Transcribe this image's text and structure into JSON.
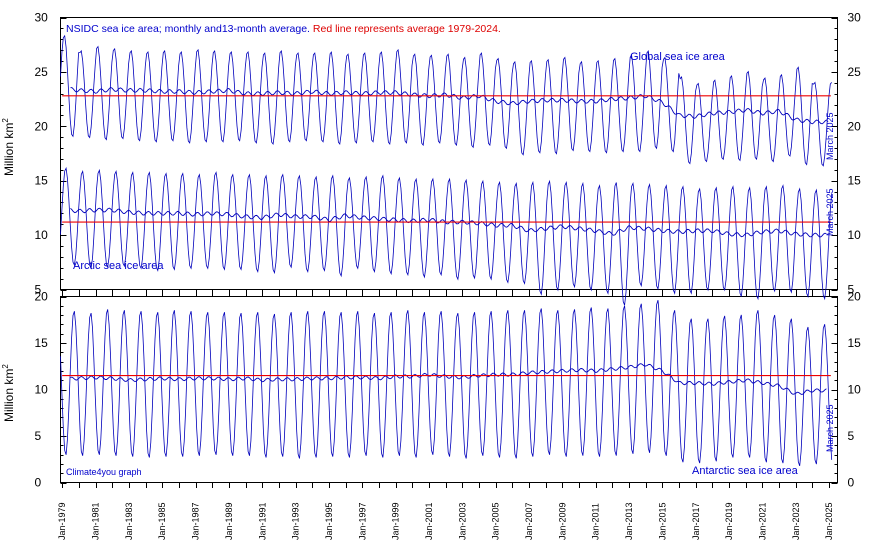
{
  "chart_data": [
    {
      "type": "line",
      "panel": "top",
      "title_parts": [
        {
          "text": "NSIDC sea ice area; monthly and13-month average. ",
          "color": "#0000cc"
        },
        {
          "text": "Red line represents average 1979-2024.",
          "color": "#dd0000"
        }
      ],
      "ylabel": "Million km",
      "ylabel_sup": "2",
      "ylim": [
        5,
        30
      ],
      "yticks": [
        5,
        10,
        15,
        20,
        25,
        30
      ],
      "x_range": [
        1978.9,
        2025.5
      ],
      "series": [
        {
          "name": "Global sea ice area",
          "label": "Global sea ice area",
          "end_label": "March 2025",
          "color": "#0000bb",
          "average_1979_2024": 22.8,
          "annual_max": [
            28.4,
            27.0,
            27.4,
            27.2,
            27.0,
            26.9,
            27.0,
            26.9,
            27.1,
            27.0,
            26.9,
            26.9,
            26.8,
            27.0,
            26.8,
            26.8,
            26.9,
            26.7,
            26.8,
            26.9,
            27.1,
            26.7,
            26.6,
            26.7,
            26.4,
            26.8,
            26.3,
            26.0,
            26.1,
            26.2,
            26.4,
            26.0,
            26.1,
            26.3,
            26.6,
            27.0,
            26.4,
            24.6,
            24.0,
            24.3,
            24.7,
            25.1,
            24.5,
            24.8,
            25.5,
            24.1
          ],
          "annual_min": [
            19.0,
            18.9,
            18.7,
            18.8,
            18.6,
            18.5,
            18.6,
            18.4,
            18.5,
            18.5,
            18.6,
            18.4,
            18.3,
            18.5,
            18.6,
            18.5,
            18.3,
            18.4,
            18.5,
            18.3,
            18.4,
            18.2,
            18.4,
            18.2,
            18.0,
            18.2,
            17.9,
            17.3,
            17.5,
            17.4,
            17.7,
            17.6,
            17.5,
            17.6,
            17.6,
            17.9,
            17.6,
            16.5,
            16.7,
            16.9,
            16.8,
            16.9,
            16.7,
            17.2,
            16.4,
            16.3
          ],
          "avg13": [
            23.5,
            23.3,
            23.2,
            23.4,
            23.3,
            23.3,
            23.2,
            23.2,
            23.1,
            23.2,
            23.3,
            23.0,
            23.0,
            23.1,
            23.0,
            23.2,
            23.0,
            23.1,
            23.0,
            23.1,
            23.1,
            22.9,
            22.8,
            22.9,
            22.6,
            22.8,
            22.3,
            22.1,
            22.3,
            22.4,
            22.4,
            22.3,
            22.3,
            22.5,
            22.6,
            22.8,
            22.2,
            21.0,
            20.9,
            21.2,
            21.3,
            21.5,
            21.2,
            21.4,
            20.6,
            20.4
          ]
        },
        {
          "name": "Arctic sea ice area",
          "label": "Arctic sea ice area",
          "end_label": "March 2025",
          "color": "#0000bb",
          "average_1979_2024": 11.2,
          "annual_max": [
            16.2,
            15.9,
            16.0,
            15.9,
            15.8,
            15.8,
            15.7,
            15.7,
            15.6,
            15.8,
            15.6,
            15.6,
            15.5,
            15.6,
            15.5,
            15.4,
            15.5,
            15.3,
            15.4,
            15.5,
            15.3,
            15.2,
            15.2,
            15.2,
            15.1,
            15.0,
            14.9,
            14.8,
            14.9,
            15.0,
            14.9,
            14.8,
            14.6,
            14.9,
            14.8,
            14.7,
            14.6,
            14.5,
            14.3,
            14.4,
            14.5,
            14.4,
            14.5,
            14.6,
            14.3,
            14.2
          ],
          "annual_min": [
            7.2,
            6.9,
            7.0,
            7.1,
            6.9,
            6.7,
            6.8,
            6.9,
            6.9,
            6.8,
            6.8,
            6.6,
            6.5,
            7.0,
            6.6,
            6.7,
            6.2,
            6.9,
            6.6,
            6.4,
            6.3,
            6.1,
            6.3,
            5.9,
            6.0,
            5.9,
            5.6,
            5.5,
            4.5,
            4.9,
            5.2,
            4.9,
            4.6,
            3.5,
            5.3,
            5.0,
            4.6,
            4.6,
            4.9,
            4.9,
            4.3,
            4.1,
            4.8,
            4.7,
            4.3,
            4.1
          ],
          "avg13": [
            12.4,
            12.2,
            12.3,
            12.3,
            12.1,
            12.0,
            12.0,
            12.0,
            11.9,
            12.0,
            11.9,
            11.7,
            11.6,
            11.9,
            11.7,
            11.7,
            11.4,
            11.8,
            11.6,
            11.5,
            11.4,
            11.3,
            11.4,
            11.2,
            11.2,
            11.1,
            10.9,
            10.9,
            10.4,
            10.6,
            10.8,
            10.6,
            10.4,
            10.1,
            10.7,
            10.6,
            10.4,
            10.3,
            10.4,
            10.4,
            10.1,
            10.0,
            10.3,
            10.4,
            10.1,
            10.0
          ]
        }
      ]
    },
    {
      "type": "line",
      "panel": "bottom",
      "ylabel": "Million km",
      "ylabel_sup": "2",
      "ylim": [
        0,
        20
      ],
      "yticks": [
        0,
        5,
        10,
        15,
        20
      ],
      "x_range": [
        1978.9,
        2025.5
      ],
      "credit": "Climate4you graph",
      "series": [
        {
          "name": "Antarctic sea ice area",
          "label": "Antarctic sea ice area",
          "end_label": "March 2025",
          "color": "#0000bb",
          "average_1979_2024": 11.5,
          "annual_max": [
            18.5,
            18.3,
            18.7,
            18.6,
            18.5,
            18.4,
            18.6,
            18.5,
            18.4,
            18.4,
            18.3,
            18.4,
            18.2,
            18.4,
            18.5,
            18.5,
            18.4,
            18.5,
            18.3,
            18.4,
            18.6,
            18.4,
            18.5,
            18.3,
            18.4,
            18.5,
            18.6,
            18.6,
            18.8,
            18.6,
            18.7,
            18.9,
            18.8,
            19.1,
            19.3,
            19.7,
            18.6,
            17.7,
            17.7,
            18.0,
            18.1,
            18.6,
            18.1,
            17.7,
            16.8,
            17.1
          ],
          "annual_min": [
            2.9,
            2.8,
            2.9,
            2.8,
            2.7,
            2.6,
            2.7,
            2.7,
            2.8,
            2.9,
            2.8,
            2.8,
            2.6,
            2.7,
            2.5,
            2.6,
            2.7,
            2.6,
            2.8,
            2.6,
            2.8,
            2.6,
            2.9,
            2.7,
            2.5,
            2.8,
            2.6,
            2.5,
            2.7,
            2.9,
            2.7,
            2.8,
            2.7,
            2.8,
            3.0,
            3.1,
            2.8,
            2.1,
            2.0,
            2.2,
            2.6,
            2.6,
            2.1,
            2.0,
            1.7,
            1.9
          ],
          "avg13": [
            11.1,
            11.2,
            11.3,
            11.2,
            11.0,
            11.1,
            11.2,
            11.1,
            11.2,
            11.2,
            11.1,
            11.2,
            11.0,
            11.1,
            11.1,
            11.2,
            11.2,
            11.3,
            11.3,
            11.2,
            11.4,
            11.4,
            11.6,
            11.4,
            11.3,
            11.5,
            11.6,
            11.6,
            11.8,
            11.9,
            12.0,
            12.1,
            12.0,
            12.2,
            12.4,
            12.7,
            12.0,
            10.7,
            10.7,
            10.6,
            10.8,
            11.0,
            10.7,
            10.4,
            9.5,
            9.9
          ]
        }
      ]
    }
  ],
  "x_axis": {
    "tick_labels": [
      "Jan-1979",
      "Jan-1981",
      "Jan-1983",
      "Jan-1985",
      "Jan-1987",
      "Jan-1989",
      "Jan-1991",
      "Jan-1993",
      "Jan-1995",
      "Jan-1997",
      "Jan-1999",
      "Jan-2001",
      "Jan-2003",
      "Jan-2005",
      "Jan-2007",
      "Jan-2009",
      "Jan-2011",
      "Jan-2013",
      "Jan-2015",
      "Jan-2017",
      "Jan-2019",
      "Jan-2021",
      "Jan-2023",
      "Jan-2025"
    ],
    "tick_years": [
      1979,
      1981,
      1983,
      1985,
      1987,
      1989,
      1991,
      1993,
      1995,
      1997,
      1999,
      2001,
      2003,
      2005,
      2007,
      2009,
      2011,
      2013,
      2015,
      2017,
      2019,
      2021,
      2023,
      2025
    ]
  }
}
